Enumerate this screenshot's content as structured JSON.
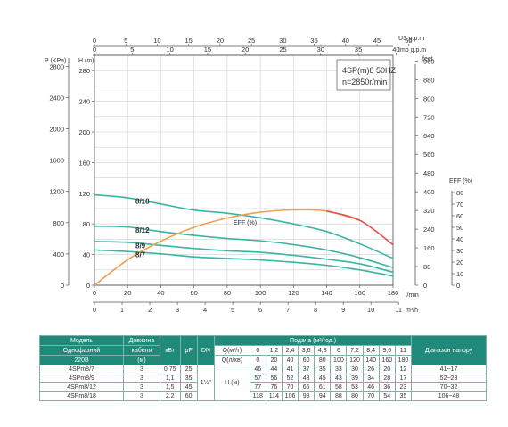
{
  "chart_data": {
    "type": "line",
    "top_axes": [
      {
        "label": "US g.p.m",
        "ticks": [
          "0",
          "5",
          "10",
          "15",
          "20",
          "25",
          "30",
          "35",
          "40",
          "45",
          "50"
        ]
      },
      {
        "label": "Imp g.p.m",
        "ticks": [
          "0",
          "5",
          "10",
          "15",
          "20",
          "25",
          "30",
          "35",
          "40"
        ]
      }
    ],
    "left_axes": [
      {
        "label": "P (KPa)",
        "ticks": [
          "0",
          "400",
          "800",
          "1200",
          "1600",
          "2000",
          "2400",
          "2800"
        ]
      },
      {
        "label": "H (m)",
        "ticks": [
          "0",
          "40",
          "80",
          "120",
          "160",
          "200",
          "240",
          "280"
        ]
      }
    ],
    "right_axes": [
      {
        "label": "feet",
        "ticks": [
          "0",
          "80",
          "160",
          "240",
          "320",
          "400",
          "480",
          "560",
          "640",
          "720",
          "800",
          "880",
          "960"
        ]
      },
      {
        "label": "EFF (%)",
        "ticks": [
          "0",
          "10",
          "20",
          "30",
          "40",
          "50",
          "60",
          "70",
          "80"
        ]
      }
    ],
    "bottom_axes": [
      {
        "label": "l/min",
        "ticks": [
          "0",
          "20",
          "40",
          "60",
          "80",
          "100",
          "120",
          "140",
          "160",
          "180"
        ]
      },
      {
        "label": "m³/h",
        "ticks": [
          "0",
          "1",
          "2",
          "3",
          "4",
          "5",
          "6",
          "7",
          "8",
          "9",
          "10",
          "11"
        ]
      }
    ],
    "xlim": [
      0,
      180
    ],
    "ylim": [
      0,
      300
    ],
    "eff_lim": [
      0,
      80
    ],
    "info_title": "4SP(m)8  50HZ",
    "info_speed": "n=2850r/min",
    "series": [
      {
        "name": "8/18",
        "color": "#3ab5a3",
        "x": [
          0,
          20,
          40,
          60,
          80,
          100,
          120,
          140,
          160,
          180
        ],
        "y": [
          118,
          114,
          106,
          98,
          94,
          88,
          80,
          70,
          54,
          35
        ]
      },
      {
        "name": "8/12",
        "color": "#3ab5a3",
        "x": [
          0,
          20,
          40,
          60,
          80,
          100,
          120,
          140,
          160,
          180
        ],
        "y": [
          77,
          76,
          70,
          65,
          61,
          58,
          53,
          46,
          36,
          23
        ]
      },
      {
        "name": "8/9",
        "color": "#3ab5a3",
        "x": [
          0,
          20,
          40,
          60,
          80,
          100,
          120,
          140,
          160,
          180
        ],
        "y": [
          57,
          56,
          52,
          48,
          45,
          43,
          39,
          34,
          28,
          17
        ]
      },
      {
        "name": "8/7",
        "color": "#3ab5a3",
        "x": [
          0,
          20,
          40,
          60,
          80,
          100,
          120,
          140,
          160,
          180
        ],
        "y": [
          46,
          44,
          41,
          37,
          35,
          33,
          30,
          26,
          20,
          12
        ]
      }
    ],
    "efficiency": {
      "label": "EFF (%)",
      "color": "#f0a050",
      "end_color": "#e05050",
      "x": [
        0,
        20,
        40,
        60,
        80,
        100,
        120,
        140,
        160,
        180
      ],
      "y": [
        0,
        22,
        38,
        50,
        58,
        63,
        65,
        64,
        56,
        35
      ]
    }
  },
  "table": {
    "header1": [
      "Модель",
      "Довжина",
      "кВт",
      "μF",
      "DN",
      "Подача (м³/год.)",
      "Діапазон напору"
    ],
    "header2": [
      "Однофазний",
      "кабеля"
    ],
    "header3": [
      "220В",
      "(м)"
    ],
    "q_m3h_label": "Q(м³/г)",
    "q_lmin_label": "Q(л/хв)",
    "q_m3h": [
      "0",
      "1,2",
      "2,4",
      "3,6",
      "4,8",
      "6",
      "7,2",
      "8,4",
      "9,6",
      "11"
    ],
    "q_lmin": [
      "0",
      "20",
      "40",
      "60",
      "80",
      "100",
      "120",
      "140",
      "160",
      "180"
    ],
    "dn": "1½\"",
    "h_label": "Н (м)",
    "rows": [
      {
        "model": "4SPm8/7",
        "cable": "3",
        "kw": "0,75",
        "uf": "25",
        "h": [
          "46",
          "44",
          "41",
          "37",
          "35",
          "33",
          "30",
          "26",
          "20",
          "12"
        ],
        "range": "41~17"
      },
      {
        "model": "4SPm8/9",
        "cable": "3",
        "kw": "1,1",
        "uf": "35",
        "h": [
          "57",
          "56",
          "52",
          "48",
          "45",
          "43",
          "39",
          "34",
          "28",
          "17"
        ],
        "range": "52~23"
      },
      {
        "model": "4SPm8/12",
        "cable": "3",
        "kw": "1,5",
        "uf": "45",
        "h": [
          "77",
          "76",
          "70",
          "65",
          "61",
          "58",
          "53",
          "46",
          "36",
          "23"
        ],
        "range": "70~32"
      },
      {
        "model": "4SPm8/18",
        "cable": "3",
        "kw": "2,2",
        "uf": "60",
        "h": [
          "118",
          "114",
          "106",
          "98",
          "94",
          "88",
          "80",
          "70",
          "54",
          "35"
        ],
        "range": "106~48"
      }
    ]
  }
}
